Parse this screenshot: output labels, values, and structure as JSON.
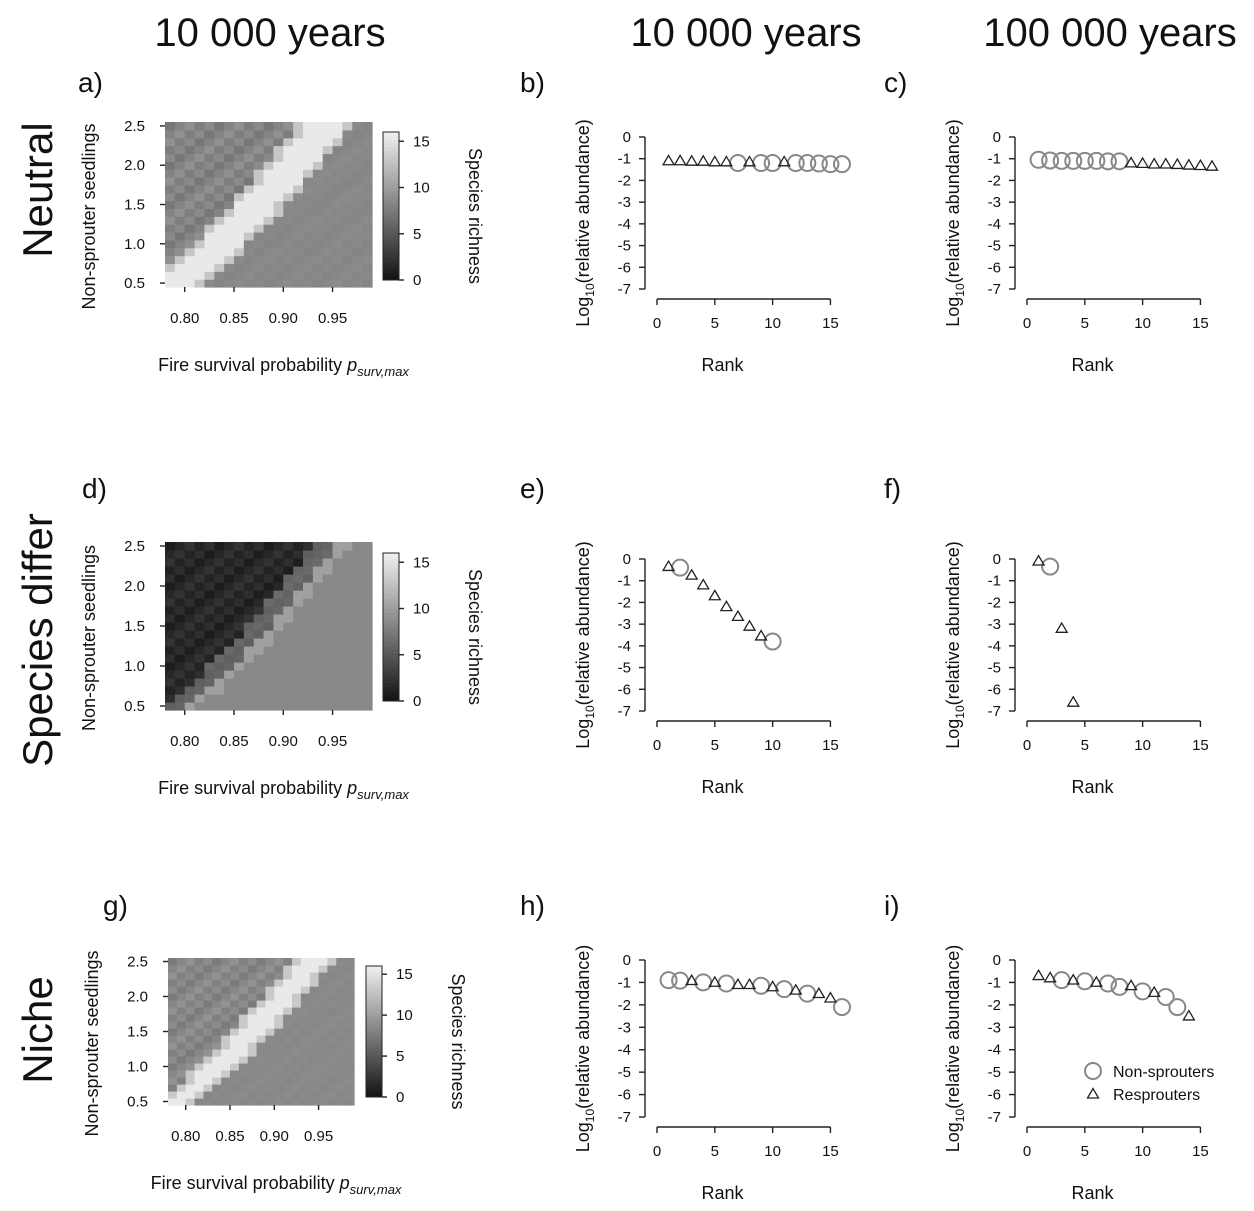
{
  "column_titles": [
    "10 000 years",
    "10 000 years",
    "100 000 years"
  ],
  "row_titles": [
    "Neutral",
    "Species differ",
    "Niche"
  ],
  "legend": {
    "nonsprouters": "Non-sprouters",
    "resprouters": "Resprouters"
  },
  "chart_data": [
    {
      "panel": "a)",
      "type": "heatmap",
      "xlabel_main": "Fire survival probability ",
      "xlabel_sub": "surv,max",
      "x_symbol": "p",
      "ylabel": "Non-sprouter seedlings",
      "colorbar_label": "Species richness",
      "x_ticks": [
        "0.80",
        "0.85",
        "0.90",
        "0.95"
      ],
      "y_ticks": [
        "0.5",
        "1.0",
        "1.5",
        "2.0",
        "2.5"
      ],
      "colorbar_ticks": [
        "0",
        "5",
        "10",
        "15"
      ],
      "xlim": [
        0.78,
        0.99
      ],
      "ylim": [
        0.45,
        2.55
      ],
      "pattern": "neutral",
      "richness_range": [
        0,
        16
      ]
    },
    {
      "panel": "d)",
      "type": "heatmap",
      "xlabel_main": "Fire survival probability ",
      "xlabel_sub": "surv,max",
      "x_symbol": "p",
      "ylabel": "Non-sprouter seedlings",
      "colorbar_label": "Species richness",
      "x_ticks": [
        "0.80",
        "0.85",
        "0.90",
        "0.95"
      ],
      "y_ticks": [
        "0.5",
        "1.0",
        "1.5",
        "2.0",
        "2.5"
      ],
      "colorbar_ticks": [
        "0",
        "5",
        "10",
        "15"
      ],
      "xlim": [
        0.78,
        0.99
      ],
      "ylim": [
        0.45,
        2.55
      ],
      "pattern": "differ",
      "richness_range": [
        0,
        16
      ]
    },
    {
      "panel": "g)",
      "type": "heatmap",
      "xlabel_main": "Fire survival probability ",
      "xlabel_sub": "surv,max",
      "x_symbol": "p",
      "ylabel": "Non-sprouter seedlings",
      "colorbar_label": "Species richness",
      "x_ticks": [
        "0.80",
        "0.85",
        "0.90",
        "0.95"
      ],
      "y_ticks": [
        "0.5",
        "1.0",
        "1.5",
        "2.0",
        "2.5"
      ],
      "colorbar_ticks": [
        "0",
        "5",
        "10",
        "15"
      ],
      "xlim": [
        0.78,
        0.99
      ],
      "ylim": [
        0.45,
        2.55
      ],
      "pattern": "niche",
      "richness_range": [
        0,
        16
      ]
    },
    {
      "panel": "b)",
      "type": "scatter",
      "xlabel": "Rank",
      "ylabel_main": "Log",
      "ylabel_sub": "10",
      "ylabel_rest": "(relative abundance)",
      "xlim": [
        0,
        16
      ],
      "ylim": [
        -7,
        0
      ],
      "x_ticks": [
        0,
        5,
        10,
        15
      ],
      "y_ticks": [
        0,
        -1,
        -2,
        -3,
        -4,
        -5,
        -6,
        -7
      ],
      "series": [
        {
          "name": "Non-sprouters",
          "marker": "circle",
          "points": [
            [
              7,
              -1.2
            ],
            [
              9,
              -1.2
            ],
            [
              10,
              -1.2
            ],
            [
              12,
              -1.2
            ],
            [
              13,
              -1.2
            ],
            [
              14,
              -1.22
            ],
            [
              15,
              -1.25
            ],
            [
              16,
              -1.25
            ]
          ]
        },
        {
          "name": "Resprouters",
          "marker": "triangle",
          "points": [
            [
              1,
              -1.1
            ],
            [
              2,
              -1.1
            ],
            [
              3,
              -1.12
            ],
            [
              4,
              -1.12
            ],
            [
              5,
              -1.15
            ],
            [
              6,
              -1.15
            ],
            [
              8,
              -1.15
            ],
            [
              11,
              -1.15
            ]
          ]
        }
      ]
    },
    {
      "panel": "c)",
      "type": "scatter",
      "xlabel": "Rank",
      "ylabel_main": "Log",
      "ylabel_sub": "10",
      "ylabel_rest": "(relative abundance)",
      "xlim": [
        0,
        16
      ],
      "ylim": [
        -7,
        0
      ],
      "x_ticks": [
        0,
        5,
        10,
        15
      ],
      "y_ticks": [
        0,
        -1,
        -2,
        -3,
        -4,
        -5,
        -6,
        -7
      ],
      "series": [
        {
          "name": "Non-sprouters",
          "marker": "circle",
          "points": [
            [
              1,
              -1.05
            ],
            [
              2,
              -1.08
            ],
            [
              3,
              -1.1
            ],
            [
              4,
              -1.1
            ],
            [
              5,
              -1.1
            ],
            [
              6,
              -1.1
            ],
            [
              7,
              -1.12
            ],
            [
              8,
              -1.12
            ]
          ]
        },
        {
          "name": "Resprouters",
          "marker": "triangle",
          "points": [
            [
              9,
              -1.2
            ],
            [
              10,
              -1.22
            ],
            [
              11,
              -1.25
            ],
            [
              12,
              -1.25
            ],
            [
              13,
              -1.27
            ],
            [
              14,
              -1.3
            ],
            [
              15,
              -1.32
            ],
            [
              16,
              -1.35
            ]
          ]
        }
      ]
    },
    {
      "panel": "e)",
      "type": "scatter",
      "xlabel": "Rank",
      "ylabel_main": "Log",
      "ylabel_sub": "10",
      "ylabel_rest": "(relative abundance)",
      "xlim": [
        0,
        16
      ],
      "ylim": [
        -7,
        0
      ],
      "x_ticks": [
        0,
        5,
        10,
        15
      ],
      "y_ticks": [
        0,
        -1,
        -2,
        -3,
        -4,
        -5,
        -6,
        -7
      ],
      "series": [
        {
          "name": "Non-sprouters",
          "marker": "circle",
          "points": [
            [
              2,
              -0.4
            ],
            [
              10,
              -3.8
            ]
          ]
        },
        {
          "name": "Resprouters",
          "marker": "triangle",
          "points": [
            [
              1,
              -0.35
            ],
            [
              3,
              -0.75
            ],
            [
              4,
              -1.2
            ],
            [
              5,
              -1.7
            ],
            [
              6,
              -2.2
            ],
            [
              7,
              -2.65
            ],
            [
              8,
              -3.1
            ],
            [
              9,
              -3.55
            ]
          ]
        }
      ]
    },
    {
      "panel": "f)",
      "type": "scatter",
      "xlabel": "Rank",
      "ylabel_main": "Log",
      "ylabel_sub": "10",
      "ylabel_rest": "(relative abundance)",
      "xlim": [
        0,
        16
      ],
      "ylim": [
        -7,
        0
      ],
      "x_ticks": [
        0,
        5,
        10,
        15
      ],
      "y_ticks": [
        0,
        -1,
        -2,
        -3,
        -4,
        -5,
        -6,
        -7
      ],
      "series": [
        {
          "name": "Non-sprouters",
          "marker": "circle",
          "points": [
            [
              2,
              -0.35
            ]
          ]
        },
        {
          "name": "Resprouters",
          "marker": "triangle",
          "points": [
            [
              1,
              -0.1
            ],
            [
              3,
              -3.2
            ],
            [
              4,
              -6.6
            ]
          ]
        }
      ]
    },
    {
      "panel": "h)",
      "type": "scatter",
      "xlabel": "Rank",
      "ylabel_main": "Log",
      "ylabel_sub": "10",
      "ylabel_rest": "(relative abundance)",
      "xlim": [
        0,
        16
      ],
      "ylim": [
        -7,
        0
      ],
      "x_ticks": [
        0,
        5,
        10,
        15
      ],
      "y_ticks": [
        0,
        -1,
        -2,
        -3,
        -4,
        -5,
        -6,
        -7
      ],
      "series": [
        {
          "name": "Non-sprouters",
          "marker": "circle",
          "points": [
            [
              1,
              -0.9
            ],
            [
              2,
              -0.92
            ],
            [
              4,
              -1.0
            ],
            [
              6,
              -1.05
            ],
            [
              9,
              -1.15
            ],
            [
              11,
              -1.3
            ],
            [
              13,
              -1.5
            ],
            [
              16,
              -2.1
            ]
          ]
        },
        {
          "name": "Resprouters",
          "marker": "triangle",
          "points": [
            [
              3,
              -0.92
            ],
            [
              5,
              -1.0
            ],
            [
              7,
              -1.1
            ],
            [
              8,
              -1.1
            ],
            [
              10,
              -1.2
            ],
            [
              12,
              -1.35
            ],
            [
              14,
              -1.5
            ],
            [
              15,
              -1.7
            ]
          ]
        }
      ]
    },
    {
      "panel": "i)",
      "type": "scatter",
      "xlabel": "Rank",
      "ylabel_main": "Log",
      "ylabel_sub": "10",
      "ylabel_rest": "(relative abundance)",
      "xlim": [
        0,
        16
      ],
      "ylim": [
        -7,
        0
      ],
      "x_ticks": [
        0,
        5,
        10,
        15
      ],
      "y_ticks": [
        0,
        -1,
        -2,
        -3,
        -4,
        -5,
        -6,
        -7
      ],
      "legend": true,
      "series": [
        {
          "name": "Non-sprouters",
          "marker": "circle",
          "points": [
            [
              3,
              -0.9
            ],
            [
              5,
              -0.95
            ],
            [
              7,
              -1.05
            ],
            [
              8,
              -1.2
            ],
            [
              10,
              -1.4
            ],
            [
              12,
              -1.65
            ],
            [
              13,
              -2.1
            ]
          ]
        },
        {
          "name": "Resprouters",
          "marker": "triangle",
          "points": [
            [
              1,
              -0.7
            ],
            [
              2,
              -0.8
            ],
            [
              4,
              -0.9
            ],
            [
              6,
              -1.0
            ],
            [
              9,
              -1.15
            ],
            [
              11,
              -1.45
            ],
            [
              14,
              -2.5
            ]
          ]
        }
      ]
    }
  ]
}
